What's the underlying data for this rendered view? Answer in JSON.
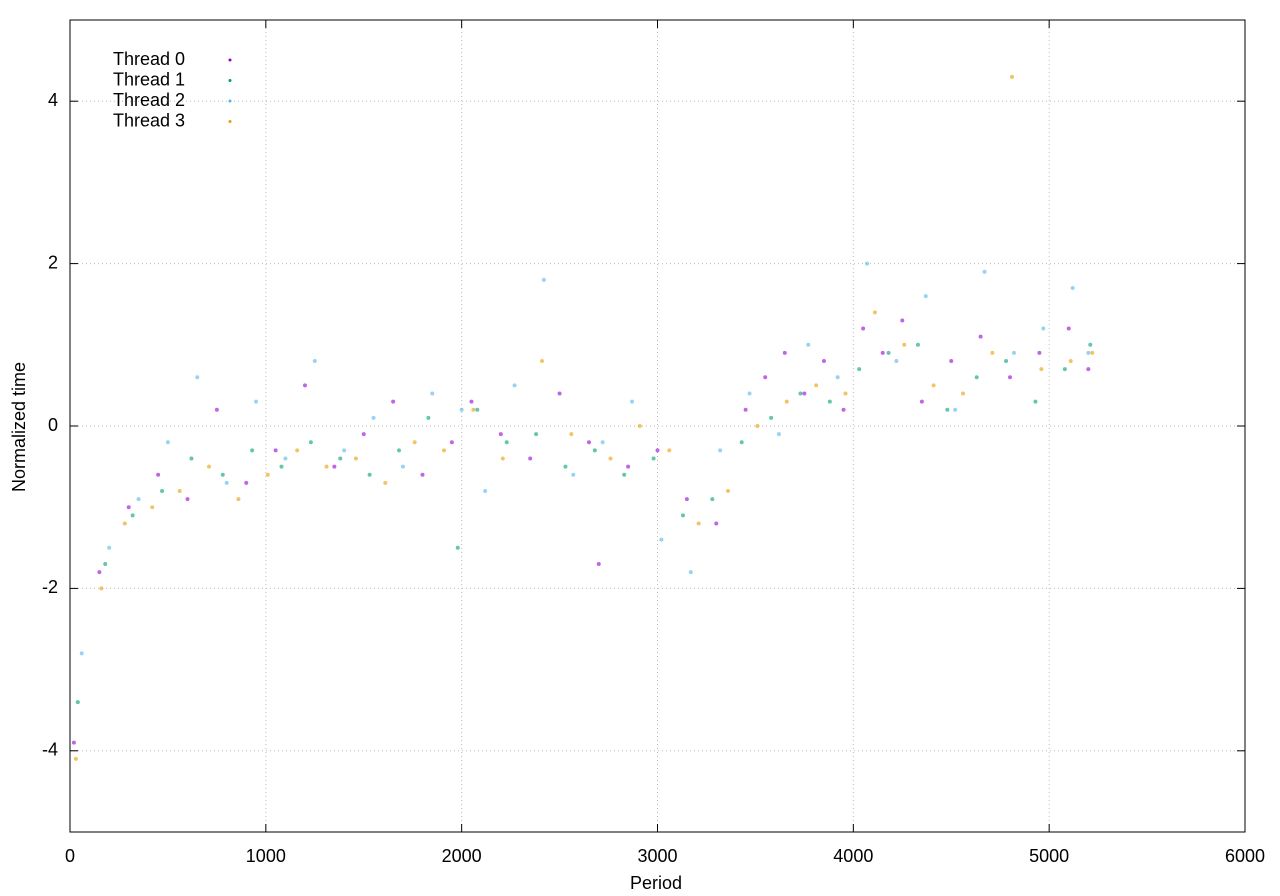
{
  "chart_data": {
    "type": "scatter",
    "x_label": "Period",
    "y_label": "Normalized time",
    "xlim": [
      0,
      6000
    ],
    "xticks": [
      0,
      1000,
      2000,
      3000,
      4000,
      5000,
      6000
    ],
    "ylim": [
      -5,
      5
    ],
    "yticks": [
      -4,
      -2,
      0,
      2,
      4
    ],
    "grid": true,
    "legend_position": "top-left",
    "series": [
      {
        "name": "Thread 0",
        "color": "#9400d3",
        "x": [
          20,
          150,
          300,
          450,
          600,
          750,
          900,
          1050,
          1200,
          1350,
          1500,
          1650,
          1800,
          1950,
          2050,
          2200,
          2350,
          2500,
          2650,
          2700,
          2850,
          3000,
          3150,
          3300,
          3450,
          3550,
          3650,
          3750,
          3850,
          3950,
          4050,
          4150,
          4250,
          4350,
          4500,
          4650,
          4800,
          4950,
          5100,
          5200
        ],
        "values": [
          -3.9,
          -1.8,
          -1.0,
          -0.6,
          -0.9,
          0.2,
          -0.7,
          -0.3,
          0.5,
          -0.5,
          -0.1,
          0.3,
          -0.6,
          -0.2,
          0.3,
          -0.1,
          -0.4,
          0.4,
          -0.2,
          -1.7,
          -0.5,
          -0.3,
          -0.9,
          -1.2,
          0.2,
          0.6,
          0.9,
          0.4,
          0.8,
          0.2,
          1.2,
          0.9,
          1.3,
          0.3,
          0.8,
          1.1,
          0.6,
          0.9,
          1.2,
          0.7
        ]
      },
      {
        "name": "Thread 1",
        "color": "#009e73",
        "x": [
          40,
          180,
          320,
          470,
          620,
          780,
          930,
          1080,
          1230,
          1380,
          1530,
          1680,
          1830,
          1980,
          2080,
          2230,
          2380,
          2530,
          2680,
          2830,
          2980,
          3130,
          3280,
          3430,
          3580,
          3730,
          3880,
          4030,
          4180,
          4330,
          4480,
          4630,
          4780,
          4930,
          5080,
          5210
        ],
        "values": [
          -3.4,
          -1.7,
          -1.1,
          -0.8,
          -0.4,
          -0.6,
          -0.3,
          -0.5,
          -0.2,
          -0.4,
          -0.6,
          -0.3,
          0.1,
          -1.5,
          0.2,
          -0.2,
          -0.1,
          -0.5,
          -0.3,
          -0.6,
          -0.4,
          -1.1,
          -0.9,
          -0.2,
          0.1,
          0.4,
          0.3,
          0.7,
          0.9,
          1.0,
          0.2,
          0.6,
          0.8,
          0.3,
          0.7,
          1.0
        ]
      },
      {
        "name": "Thread 2",
        "color": "#56b4e9",
        "x": [
          60,
          200,
          350,
          500,
          650,
          800,
          950,
          1100,
          1250,
          1400,
          1550,
          1700,
          1850,
          2000,
          2120,
          2270,
          2420,
          2570,
          2720,
          2870,
          3020,
          3170,
          3320,
          3470,
          3620,
          3770,
          3920,
          4070,
          4220,
          4370,
          4520,
          4670,
          4820,
          4970,
          5120,
          5200
        ],
        "values": [
          -2.8,
          -1.5,
          -0.9,
          -0.2,
          0.6,
          -0.7,
          0.3,
          -0.4,
          0.8,
          -0.3,
          0.1,
          -0.5,
          0.4,
          0.2,
          -0.8,
          0.5,
          1.8,
          -0.6,
          -0.2,
          0.3,
          -1.4,
          -1.8,
          -0.3,
          0.4,
          -0.1,
          1.0,
          0.6,
          2.0,
          0.8,
          1.6,
          0.2,
          1.9,
          0.9,
          1.2,
          1.7,
          0.9
        ]
      },
      {
        "name": "Thread 3",
        "color": "#e69f00",
        "x": [
          30,
          160,
          280,
          420,
          560,
          710,
          860,
          1010,
          1160,
          1310,
          1460,
          1610,
          1760,
          1910,
          2060,
          2210,
          2410,
          2560,
          2760,
          2910,
          3060,
          3210,
          3360,
          3510,
          3660,
          3810,
          3960,
          4110,
          4260,
          4410,
          4560,
          4710,
          4810,
          4960,
          5110,
          5220
        ],
        "values": [
          -4.1,
          -2.0,
          -1.2,
          -1.0,
          -0.8,
          -0.5,
          -0.9,
          -0.6,
          -0.3,
          -0.5,
          -0.4,
          -0.7,
          -0.2,
          -0.3,
          0.2,
          -0.4,
          0.8,
          -0.1,
          -0.4,
          0.0,
          -0.3,
          -1.2,
          -0.8,
          0.0,
          0.3,
          0.5,
          0.4,
          1.4,
          1.0,
          0.5,
          0.4,
          0.9,
          4.3,
          0.7,
          0.8,
          0.9
        ]
      }
    ]
  }
}
